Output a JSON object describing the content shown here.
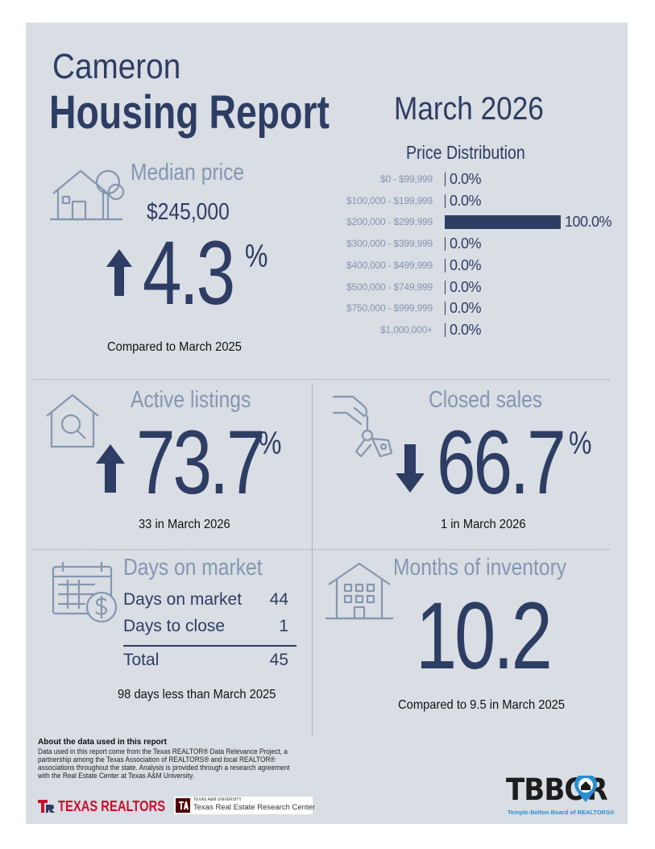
{
  "header": {
    "city": "Cameron",
    "report_title": "Housing Report",
    "period": "March 2026"
  },
  "median_price": {
    "title": "Median price",
    "value": "$245,000",
    "change": "4.3",
    "percent_sign": "%",
    "direction": "up",
    "caption": "Compared to March 2025"
  },
  "price_distribution": {
    "title": "Price Distribution",
    "rows": [
      {
        "label": "$0 - $99,999",
        "value": "0.0%",
        "share": 0.0
      },
      {
        "label": "$100,000 - $199,999",
        "value": "0.0%",
        "share": 0.0
      },
      {
        "label": "$200,000 - $299,999",
        "value": "100.0%",
        "share": 1.0
      },
      {
        "label": "$300,000 - $399,999",
        "value": "0.0%",
        "share": 0.0
      },
      {
        "label": "$400,000 - $499,999",
        "value": "0.0%",
        "share": 0.0
      },
      {
        "label": "$500,000 - $749,999",
        "value": "0.0%",
        "share": 0.0
      },
      {
        "label": "$750,000 - $999,999",
        "value": "0.0%",
        "share": 0.0
      },
      {
        "label": "$1,000,000+",
        "value": "0.0%",
        "share": 0.0
      }
    ]
  },
  "active_listings": {
    "title": "Active listings",
    "change": "73.7",
    "percent_sign": "%",
    "direction": "up",
    "caption": "33 in March 2026"
  },
  "closed_sales": {
    "title": "Closed sales",
    "change": "66.7",
    "percent_sign": "%",
    "direction": "down",
    "caption": "1 in March 2026"
  },
  "days_on_market": {
    "title": "Days on market",
    "rows": [
      {
        "label": "Days on market",
        "value": "44"
      },
      {
        "label": "Days to close",
        "value": "1"
      }
    ],
    "total_label": "Total",
    "total_value": "45",
    "caption": "98 days less than March 2025"
  },
  "months_inventory": {
    "title": "Months of inventory",
    "value": "10.2",
    "caption": "Compared to 9.5 in March 2025"
  },
  "footer": {
    "about_title": "About the data used in this report",
    "about_text_1": "Data used in this report come from the Texas REALTOR® Data Relevance Project, a",
    "about_text_2": "partnership among the Texas Association of REALTORS® and local REALTOR®",
    "about_text_3": "associations throughout the state. Analysis is provided through a research agreement",
    "about_text_4": "with the Real Estate Center at Texas A&M University.",
    "texas_realtors": "TEXAS REALTORS",
    "tamu_small": "TEXAS A&M UNIVERSITY",
    "tamu_center": "Texas Real Estate Research Center",
    "tbbor_logo": "TBBOR",
    "tbbor_name": "Temple-Belton Board of REALTORS®"
  },
  "colors": {
    "navy": "#2e3d63",
    "muted": "#8597b0",
    "background": "#d9dde4",
    "tbbor_blue": "#2a8fd0",
    "tr_red": "#c8102e",
    "tamu_maroon": "#500000"
  }
}
